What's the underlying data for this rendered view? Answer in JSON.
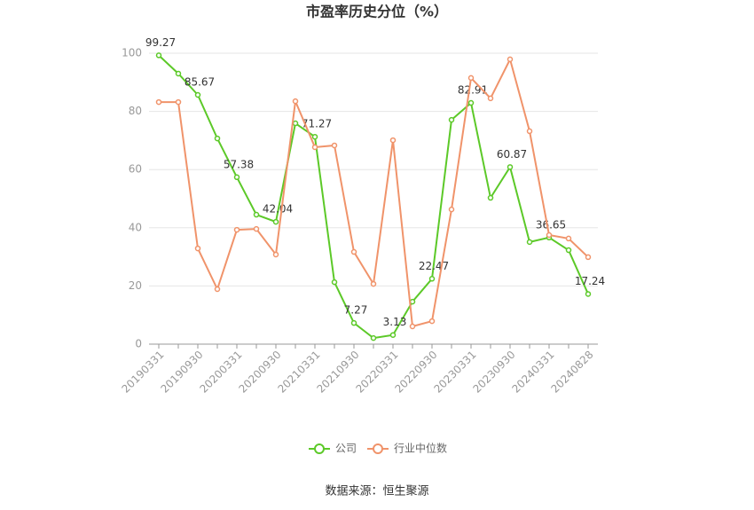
{
  "chart_data": {
    "type": "line",
    "title": "市盈率历史分位（%）",
    "source": "数据来源：恒生聚源",
    "categories": [
      "20190331",
      null,
      "20190930",
      null,
      "20200331",
      null,
      "20200930",
      null,
      "20210331",
      null,
      "20210930",
      null,
      "20220331",
      null,
      "20220930",
      null,
      "20230331",
      null,
      "20230930",
      null,
      "20240331",
      null,
      "20240828"
    ],
    "series": [
      {
        "name": "公司",
        "color": "#5cc928",
        "values": [
          99.27,
          93.0,
          85.67,
          70.7,
          57.38,
          44.5,
          42.04,
          75.9,
          71.27,
          21.3,
          7.27,
          2.1,
          3.13,
          14.6,
          22.47,
          77.1,
          82.91,
          50.3,
          60.87,
          35.1,
          36.65,
          32.3,
          17.24
        ],
        "value_labels": [
          "99.27",
          null,
          "85.67",
          null,
          "57.38",
          null,
          "42.04",
          null,
          "71.27",
          null,
          "7.27",
          null,
          "3.13",
          null,
          "22.47",
          null,
          "82.91",
          null,
          "60.87",
          null,
          "36.65",
          null,
          "17.24"
        ]
      },
      {
        "name": "行业中位数",
        "color": "#f0936a",
        "values": [
          83.2,
          83.2,
          32.9,
          18.9,
          39.3,
          39.6,
          30.8,
          83.5,
          67.7,
          68.3,
          31.7,
          20.7,
          70.1,
          6.1,
          7.9,
          46.3,
          91.5,
          84.5,
          97.9,
          73.2,
          37.5,
          36.3,
          29.9
        ]
      }
    ],
    "ylim": [
      0,
      100
    ],
    "yticks": [
      0,
      20,
      40,
      60,
      80,
      100
    ],
    "grid": true
  }
}
